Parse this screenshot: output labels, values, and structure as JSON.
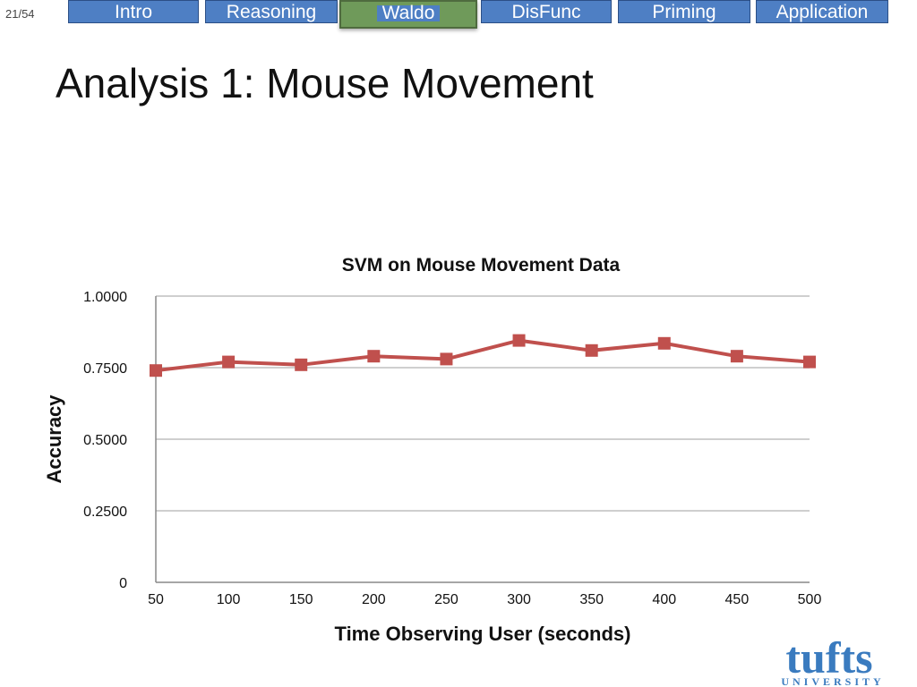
{
  "page_counter": "21/54",
  "nav": {
    "tabs": [
      {
        "label": "Intro",
        "active": false
      },
      {
        "label": "Reasoning",
        "active": false
      },
      {
        "label": "Waldo",
        "active": true
      },
      {
        "label": "DisFunc",
        "active": false
      },
      {
        "label": "Priming",
        "active": false
      },
      {
        "label": "Application",
        "active": false
      }
    ]
  },
  "slide_title": "Analysis 1: Mouse Movement",
  "logo": {
    "text": "tufts",
    "subtext": "UNIVERSITY"
  },
  "colors": {
    "tab": "#4e7fc4",
    "tab_active": "#6f9a5a",
    "series": "#c0504d",
    "grid": "#bfbfbf"
  },
  "chart_data": {
    "type": "line",
    "title": "SVM on Mouse Movement Data",
    "xlabel": "Time Observing User (seconds)",
    "ylabel": "Accuracy",
    "categories": [
      "50",
      "100",
      "150",
      "200",
      "250",
      "300",
      "350",
      "400",
      "450",
      "500"
    ],
    "series": [
      {
        "values": [
          0.74,
          0.77,
          0.76,
          0.79,
          0.78,
          0.845,
          0.81,
          0.835,
          0.79,
          0.77
        ]
      }
    ],
    "ylim": [
      0,
      1
    ],
    "yticks": [
      "0",
      "0.2500",
      "0.5000",
      "0.7500",
      "1.0000"
    ],
    "ytick_values": [
      0,
      0.25,
      0.5,
      0.75,
      1.0
    ],
    "grid": true,
    "legend": "none"
  }
}
